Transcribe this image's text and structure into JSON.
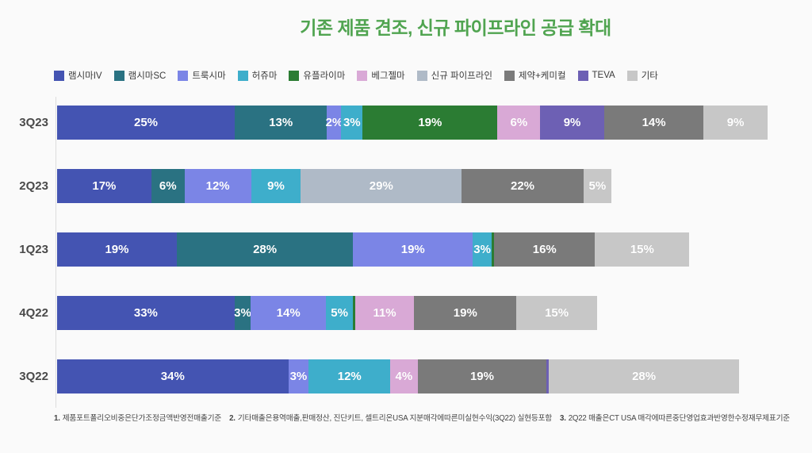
{
  "title": "기존 제품 견조, 신규 파이프라인 공급 확대",
  "title_color": "#50a450",
  "legend": [
    {
      "label": "램시마IV",
      "color": "#4454b2"
    },
    {
      "label": "램시마SC",
      "color": "#2a7282"
    },
    {
      "label": "트룩시마",
      "color": "#7b85e6"
    },
    {
      "label": "허쥬마",
      "color": "#3eaecb"
    },
    {
      "label": "유플라이마",
      "color": "#2b7c33"
    },
    {
      "label": "베그젤마",
      "color": "#d9a9d6"
    },
    {
      "label": "신규 파이프라인",
      "color": "#afbac7"
    },
    {
      "label": "제약+케미컬",
      "color": "#7a7a7a"
    },
    {
      "label": "TEVA",
      "color": "#6d60b4"
    },
    {
      "label": "기타",
      "color": "#c7c7c7"
    }
  ],
  "chart_data": {
    "type": "bar",
    "orientation": "horizontal",
    "stacked": true,
    "title": "기존 제품 견조, 신규 파이프라인 공급 확대",
    "value_unit": "%",
    "categories": [
      "3Q23",
      "2Q23",
      "1Q23",
      "4Q22",
      "3Q22"
    ],
    "series_legend": [
      "램시마IV",
      "램시마SC",
      "트룩시마",
      "허쥬마",
      "유플라이마",
      "베그젤마",
      "신규 파이프라인",
      "제약+케미컬",
      "TEVA",
      "기타"
    ],
    "bar_length_note": "bar total length is proportional to quarterly revenue; relative_total is indexed to 3Q23 = 100",
    "rows": [
      {
        "category": "3Q23",
        "relative_total": 100,
        "segments": [
          {
            "series": "램시마IV",
            "value": 25,
            "label": "25%"
          },
          {
            "series": "램시마SC",
            "value": 13,
            "label": "13%"
          },
          {
            "series": "트룩시마",
            "value": 2,
            "label": "2%"
          },
          {
            "series": "허쥬마",
            "value": 3,
            "label": "3%"
          },
          {
            "series": "유플라이마",
            "value": 19,
            "label": "19%"
          },
          {
            "series": "베그젤마",
            "value": 6,
            "label": "6%"
          },
          {
            "series": "TEVA",
            "value": 9,
            "label": "9%"
          },
          {
            "series": "제약+케미컬",
            "value": 14,
            "label": "14%"
          },
          {
            "series": "기타",
            "value": 9,
            "label": "9%"
          }
        ]
      },
      {
        "category": "2Q23",
        "relative_total": 78,
        "segments": [
          {
            "series": "램시마IV",
            "value": 17,
            "label": "17%"
          },
          {
            "series": "램시마SC",
            "value": 6,
            "label": "6%"
          },
          {
            "series": "트룩시마",
            "value": 12,
            "label": "12%"
          },
          {
            "series": "허쥬마",
            "value": 9,
            "label": "9%"
          },
          {
            "series": "신규 파이프라인",
            "value": 29,
            "label": "29%"
          },
          {
            "series": "제약+케미컬",
            "value": 22,
            "label": "22%"
          },
          {
            "series": "기타",
            "value": 5,
            "label": "5%"
          }
        ]
      },
      {
        "category": "1Q23",
        "relative_total": 89,
        "segments": [
          {
            "series": "램시마IV",
            "value": 19,
            "label": "19%"
          },
          {
            "series": "램시마SC",
            "value": 28,
            "label": "28%"
          },
          {
            "series": "트룩시마",
            "value": 19,
            "label": "19%"
          },
          {
            "series": "허쥬마",
            "value": 3,
            "label": "3%"
          },
          {
            "series": "유플라이마",
            "value": 0.4,
            "label": ""
          },
          {
            "series": "제약+케미컬",
            "value": 16,
            "label": "16%"
          },
          {
            "series": "기타",
            "value": 15,
            "label": "15%"
          }
        ]
      },
      {
        "category": "4Q22",
        "relative_total": 76,
        "segments": [
          {
            "series": "램시마IV",
            "value": 33,
            "label": "33%"
          },
          {
            "series": "램시마SC",
            "value": 3,
            "label": "3%"
          },
          {
            "series": "트룩시마",
            "value": 14,
            "label": "14%"
          },
          {
            "series": "허쥬마",
            "value": 5,
            "label": "5%"
          },
          {
            "series": "유플라이마",
            "value": 0.4,
            "label": ""
          },
          {
            "series": "베그젤마",
            "value": 11,
            "label": "11%"
          },
          {
            "series": "제약+케미컬",
            "value": 19,
            "label": "19%"
          },
          {
            "series": "기타",
            "value": 15,
            "label": "15%"
          }
        ]
      },
      {
        "category": "3Q22",
        "relative_total": 96,
        "segments": [
          {
            "series": "램시마IV",
            "value": 34,
            "label": "34%"
          },
          {
            "series": "트룩시마",
            "value": 3,
            "label": "3%"
          },
          {
            "series": "허쥬마",
            "value": 12,
            "label": "12%"
          },
          {
            "series": "베그젤마",
            "value": 4,
            "label": "4%"
          },
          {
            "series": "제약+케미컬",
            "value": 19,
            "label": "19%"
          },
          {
            "series": "TEVA",
            "value": 0.3,
            "label": ""
          },
          {
            "series": "기타",
            "value": 28,
            "label": "28%"
          }
        ]
      }
    ]
  },
  "footnote": {
    "parts": [
      {
        "num": "1.",
        "text": "제품포트폴리오비중은단가조정금액반영전매출기준"
      },
      {
        "num": "2.",
        "text": "기타매출은용역매출,판매정산, 진단키트, 셀트리온USA 지분매각에따른미실현수익(3Q22) 실현등포함"
      },
      {
        "num": "3.",
        "text": "2Q22 매출은CT USA 매각에따른중단영업효과반영한수정재무제표기준"
      }
    ]
  }
}
